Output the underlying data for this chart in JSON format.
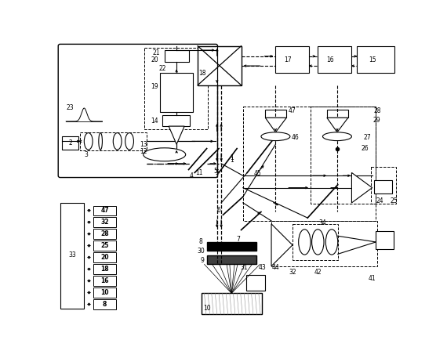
{
  "figsize": [
    5.7,
    4.57
  ],
  "dpi": 100,
  "bg_color": "#ffffff",
  "xlim": [
    0,
    570
  ],
  "ylim": [
    0,
    457
  ]
}
